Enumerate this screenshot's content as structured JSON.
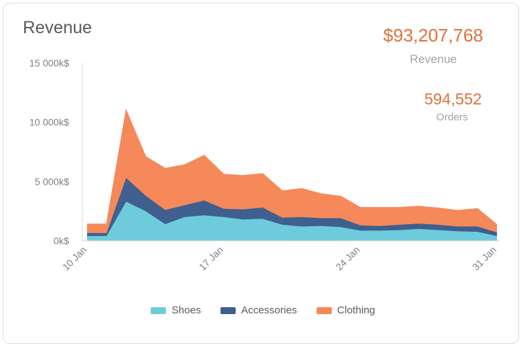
{
  "card": {
    "title": "Revenue",
    "kpis": [
      {
        "value": "$93,207,768",
        "label": "Revenue"
      },
      {
        "value": "594,552",
        "label": "Orders"
      }
    ]
  },
  "chart_data": {
    "type": "area",
    "stacked": true,
    "x": [
      "2024-01-10",
      "2024-01-11",
      "2024-01-12",
      "2024-01-13",
      "2024-01-14",
      "2024-01-15",
      "2024-01-16",
      "2024-01-17",
      "2024-01-18",
      "2024-01-19",
      "2024-01-20",
      "2024-01-21",
      "2024-01-22",
      "2024-01-23",
      "2024-01-24",
      "2024-01-25",
      "2024-01-26",
      "2024-01-27",
      "2024-01-28",
      "2024-01-29",
      "2024-01-30",
      "2024-01-31"
    ],
    "x_tick_labels": [
      "10 Jan",
      "17 Jan",
      "24 Jan",
      "31 Jan"
    ],
    "y_tick_labels": [
      "0k$",
      "5 000k$",
      "10 000k$",
      "15 000k$"
    ],
    "ylim": [
      0,
      15000
    ],
    "yticks": [
      0,
      5000,
      10000,
      15000
    ],
    "grid": false,
    "legend_position": "bottom",
    "series": [
      {
        "name": "Shoes",
        "color": "#6ecbdc",
        "values": [
          400,
          400,
          3300,
          2500,
          1400,
          2000,
          2150,
          2000,
          1800,
          1850,
          1350,
          1200,
          1250,
          1150,
          850,
          850,
          900,
          1000,
          900,
          800,
          750,
          400
        ]
      },
      {
        "name": "Accessories",
        "color": "#3f5f8f",
        "values": [
          250,
          250,
          2000,
          1300,
          1200,
          1000,
          1250,
          700,
          850,
          950,
          600,
          800,
          650,
          750,
          450,
          400,
          450,
          450,
          450,
          400,
          450,
          300
        ]
      },
      {
        "name": "Clothing",
        "color": "#f5895a",
        "values": [
          750,
          750,
          5700,
          3300,
          3500,
          3400,
          3800,
          2900,
          2850,
          2850,
          2250,
          2400,
          2050,
          1850,
          1500,
          1550,
          1450,
          1450,
          1400,
          1350,
          1500,
          650
        ]
      }
    ]
  }
}
